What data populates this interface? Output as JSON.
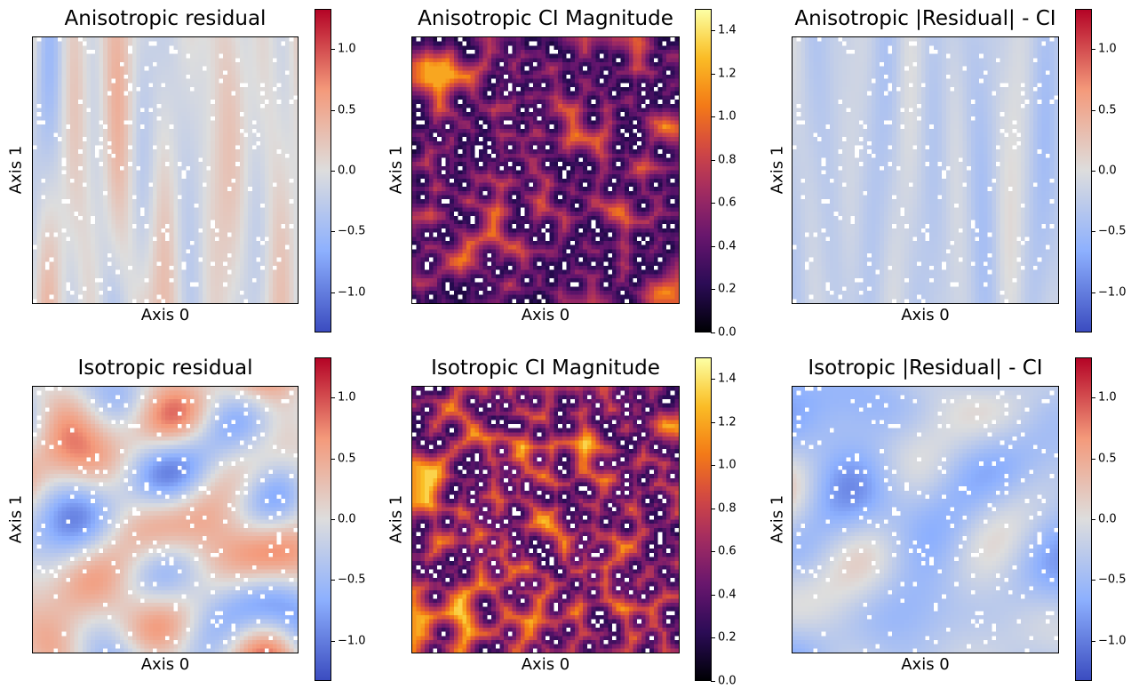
{
  "chart_data": [
    {
      "type": "heatmap",
      "title": "Anisotropic residual",
      "xlabel": "Axis 0",
      "ylabel": "Axis 1",
      "colormap": "coolwarm",
      "clim": [
        -1.33,
        1.33
      ],
      "colorbar_ticks": [
        -1.0,
        -0.5,
        0.0,
        0.5,
        1.0
      ],
      "colorbar_tick_labels": [
        "−1.0",
        "−0.5",
        "0.0",
        "0.5",
        "1.0"
      ],
      "field_style": "anisotropic",
      "grid_size": 64,
      "masked_fraction": 0.05
    },
    {
      "type": "heatmap",
      "title": "Anisotropic CI Magnitude",
      "xlabel": "Axis 0",
      "ylabel": "Axis 1",
      "colormap": "inferno",
      "clim": [
        0.0,
        1.5
      ],
      "colorbar_ticks": [
        0.0,
        0.2,
        0.4,
        0.6,
        0.8,
        1.0,
        1.2,
        1.4
      ],
      "colorbar_tick_labels": [
        "0.0",
        "0.2",
        "0.4",
        "0.6",
        "0.8",
        "1.0",
        "1.2",
        "1.4"
      ],
      "field_style": "anisotropic",
      "grid_size": 64,
      "masked_fraction": 0.05
    },
    {
      "type": "heatmap",
      "title": "Anisotropic |Residual| - CI",
      "xlabel": "Axis 0",
      "ylabel": "Axis 1",
      "colormap": "coolwarm",
      "clim": [
        -1.33,
        1.33
      ],
      "colorbar_ticks": [
        -1.0,
        -0.5,
        0.0,
        0.5,
        1.0
      ],
      "colorbar_tick_labels": [
        "−1.0",
        "−0.5",
        "0.0",
        "0.5",
        "1.0"
      ],
      "field_style": "anisotropic",
      "grid_size": 64,
      "masked_fraction": 0.05
    },
    {
      "type": "heatmap",
      "title": "Isotropic residual",
      "xlabel": "Axis 0",
      "ylabel": "Axis 1",
      "colormap": "coolwarm",
      "clim": [
        -1.33,
        1.33
      ],
      "colorbar_ticks": [
        -1.0,
        -0.5,
        0.0,
        0.5,
        1.0
      ],
      "colorbar_tick_labels": [
        "−1.0",
        "−0.5",
        "0.0",
        "0.5",
        "1.0"
      ],
      "field_style": "isotropic",
      "grid_size": 64,
      "masked_fraction": 0.05
    },
    {
      "type": "heatmap",
      "title": "Isotropic CI Magnitude",
      "xlabel": "Axis 0",
      "ylabel": "Axis 1",
      "colormap": "inferno",
      "clim": [
        0.0,
        1.5
      ],
      "colorbar_ticks": [
        0.0,
        0.2,
        0.4,
        0.6,
        0.8,
        1.0,
        1.2,
        1.4
      ],
      "colorbar_tick_labels": [
        "0.0",
        "0.2",
        "0.4",
        "0.6",
        "0.8",
        "1.0",
        "1.2",
        "1.4"
      ],
      "field_style": "isotropic",
      "grid_size": 64,
      "masked_fraction": 0.05
    },
    {
      "type": "heatmap",
      "title": "Isotropic |Residual| - CI",
      "xlabel": "Axis 0",
      "ylabel": "Axis 1",
      "colormap": "coolwarm",
      "clim": [
        -1.33,
        1.33
      ],
      "colorbar_ticks": [
        -1.0,
        -0.5,
        0.0,
        0.5,
        1.0
      ],
      "colorbar_tick_labels": [
        "−1.0",
        "−0.5",
        "0.0",
        "0.5",
        "1.0"
      ],
      "field_style": "isotropic",
      "grid_size": 64,
      "masked_fraction": 0.05
    }
  ]
}
